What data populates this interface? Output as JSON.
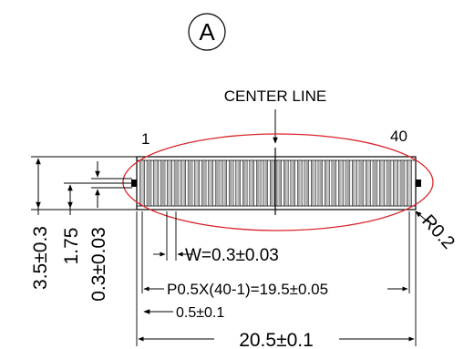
{
  "detail": {
    "label": "A"
  },
  "center_line": {
    "label": "CENTER LINE"
  },
  "pins": {
    "first": "1",
    "last": "40",
    "count": 40
  },
  "dims": {
    "height_total": "3.5±0.3",
    "height_mid": "1.75",
    "thickness": "0.3±0.03",
    "width_pin": "W=0.3±0.03",
    "pitch": "P0.5X(40-1)=19.5±0.05",
    "edge": "0.5±0.1",
    "length": "20.5±0.1",
    "radius": "R0.2"
  },
  "colors": {
    "ellipse": "#d9262c",
    "line": "#000000"
  }
}
